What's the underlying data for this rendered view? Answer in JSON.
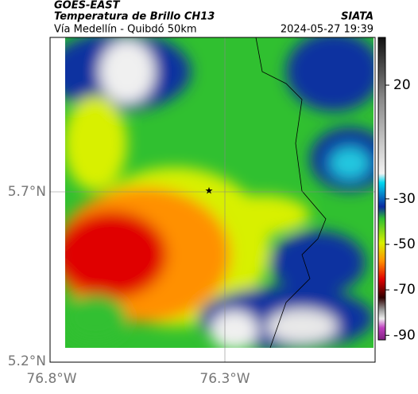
{
  "header": {
    "title": "GOES-EAST",
    "subtitle": "Temperatura de Brillo CH13",
    "region": "Vía Medellín - Quibdó 50km",
    "source": "SIATA",
    "datetime": "2024-05-27 19:39"
  },
  "map": {
    "lat_labels": [
      "5.7°N",
      "5.2°N"
    ],
    "lon_labels": [
      "76.8°W",
      "76.3°W"
    ]
  },
  "colorbar": {
    "range": [
      41,
      -92
    ],
    "ticks": [
      20,
      -30,
      -50,
      -70,
      -90
    ]
  }
}
